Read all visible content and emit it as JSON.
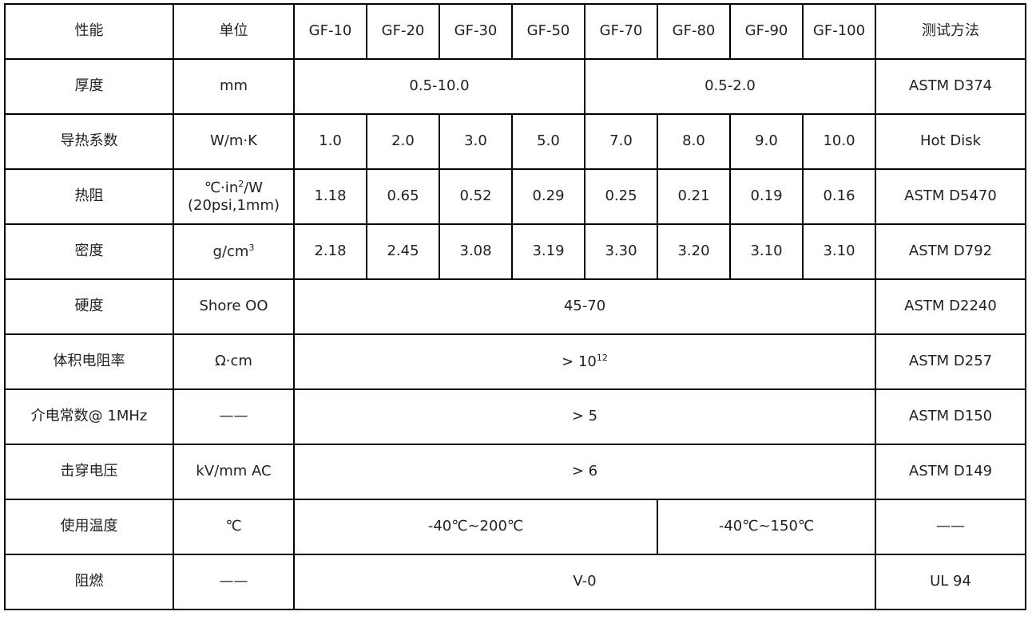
{
  "header": [
    "性能",
    "单位",
    "GF-10",
    "GF-20",
    "GF-30",
    "GF-50",
    "GF-70",
    "GF-80",
    "GF-90",
    "GF-100",
    "测试方法"
  ],
  "rows": {
    "thickness": {
      "property": "厚度",
      "unit": "mm",
      "range_a": "0.5-10.0",
      "range_b": "0.5-2.0",
      "method": "ASTM D374"
    },
    "conductivity": {
      "property": "导热系数",
      "unit": "W/m·K",
      "values": [
        "1.0",
        "2.0",
        "3.0",
        "5.0",
        "7.0",
        "8.0",
        "9.0",
        "10.0"
      ],
      "method": "Hot Disk"
    },
    "resistance": {
      "property": "热阻",
      "unit_line1": "℃·in",
      "unit_sup": "2",
      "unit_tail": "/W",
      "unit_line2": "(20psi,1mm)",
      "values": [
        "1.18",
        "0.65",
        "0.52",
        "0.29",
        "0.25",
        "0.21",
        "0.19",
        "0.16"
      ],
      "method": "ASTM D5470"
    },
    "density": {
      "property": "密度",
      "unit": "g/cm",
      "unit_sup": "3",
      "values": [
        "2.18",
        "2.45",
        "3.08",
        "3.19",
        "3.30",
        "3.20",
        "3.10",
        "3.10"
      ],
      "method": "ASTM D792"
    },
    "hardness": {
      "property": "硬度",
      "unit": "Shore OO",
      "value": "45-70",
      "method": "ASTM D2240"
    },
    "volume_resistivity": {
      "property": "体积电阻率",
      "unit": "Ω·cm",
      "value": "> 10",
      "value_sup": "12",
      "method": "ASTM D257"
    },
    "dielectric": {
      "property": "介电常数@ 1MHz",
      "unit": "——",
      "value": "> 5",
      "method": "ASTM D150"
    },
    "breakdown": {
      "property": "击穿电压",
      "unit": "kV/mm AC",
      "value": "> 6",
      "method": "ASTM D149"
    },
    "temperature": {
      "property": "使用温度",
      "unit": "℃",
      "range_a": "-40℃~200℃",
      "range_b": "-40℃~150℃",
      "method": "——"
    },
    "flame": {
      "property": "阻燃",
      "unit": "——",
      "value": "V-0",
      "method": "UL 94"
    }
  }
}
